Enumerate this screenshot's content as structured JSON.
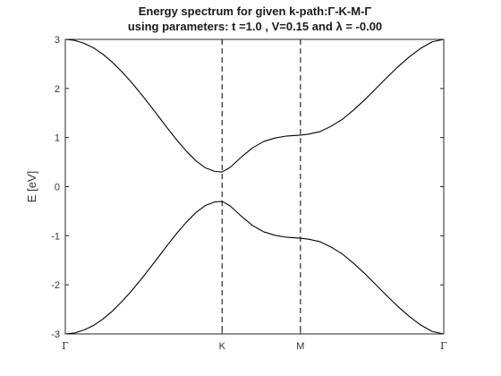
{
  "chart_data": {
    "type": "line",
    "title_line1": "Energy spectrum for given k-path:Γ-K-M-Γ",
    "title_line2": "using parameters: t =1.0 , V=0.15 and  λ = -0.00",
    "xlabel": "",
    "ylabel": "E [eV]",
    "ylim": [
      -3,
      3
    ],
    "yticks": [
      "-3",
      "-2",
      "-1",
      "0",
      "1",
      "2",
      "3"
    ],
    "yticks_values": [
      -3,
      -2,
      -1,
      0,
      1,
      2,
      3
    ],
    "xticks": [
      {
        "label": "Γ",
        "k": 0
      },
      {
        "label": "K",
        "k": 4.18879
      },
      {
        "label": "M",
        "k": 6.28319
      },
      {
        "label": "Γ",
        "k": 10.1109
      }
    ],
    "xlim": [
      0,
      10.1109
    ],
    "vertical_dashed_at": [
      4.18879,
      6.28319
    ],
    "grid": false,
    "legend": "none",
    "line_color": "#000000",
    "series": [
      {
        "points": [
          [
            0,
            3.0
          ],
          [
            0.25,
            2.98
          ],
          [
            0.5,
            2.92
          ],
          [
            0.75,
            2.83
          ],
          [
            1.0,
            2.7
          ],
          [
            1.25,
            2.54
          ],
          [
            1.5,
            2.35
          ],
          [
            1.75,
            2.14
          ],
          [
            2.0,
            1.91
          ],
          [
            2.25,
            1.67
          ],
          [
            2.5,
            1.42
          ],
          [
            2.75,
            1.17
          ],
          [
            3.0,
            0.93
          ],
          [
            3.25,
            0.71
          ],
          [
            3.5,
            0.52
          ],
          [
            3.75,
            0.38
          ],
          [
            4.0,
            0.31
          ],
          [
            4.18879,
            0.3
          ],
          [
            4.4,
            0.39
          ],
          [
            4.7,
            0.6
          ],
          [
            5.0,
            0.79
          ],
          [
            5.3,
            0.92
          ],
          [
            5.6,
            0.99
          ],
          [
            5.9,
            1.03
          ],
          [
            6.1,
            1.04
          ],
          [
            6.28319,
            1.05
          ],
          [
            6.5,
            1.07
          ],
          [
            6.8,
            1.12
          ],
          [
            7.1,
            1.23
          ],
          [
            7.4,
            1.37
          ],
          [
            7.7,
            1.56
          ],
          [
            8.0,
            1.77
          ],
          [
            8.3,
            2.0
          ],
          [
            8.6,
            2.23
          ],
          [
            8.9,
            2.45
          ],
          [
            9.2,
            2.65
          ],
          [
            9.5,
            2.82
          ],
          [
            9.8,
            2.95
          ],
          [
            10.1109,
            3.0
          ]
        ]
      },
      {
        "points": [
          [
            0,
            -3.0
          ],
          [
            0.25,
            -2.98
          ],
          [
            0.5,
            -2.92
          ],
          [
            0.75,
            -2.83
          ],
          [
            1.0,
            -2.7
          ],
          [
            1.25,
            -2.54
          ],
          [
            1.5,
            -2.35
          ],
          [
            1.75,
            -2.14
          ],
          [
            2.0,
            -1.91
          ],
          [
            2.25,
            -1.67
          ],
          [
            2.5,
            -1.42
          ],
          [
            2.75,
            -1.17
          ],
          [
            3.0,
            -0.93
          ],
          [
            3.25,
            -0.71
          ],
          [
            3.5,
            -0.52
          ],
          [
            3.75,
            -0.38
          ],
          [
            4.0,
            -0.31
          ],
          [
            4.18879,
            -0.3
          ],
          [
            4.4,
            -0.39
          ],
          [
            4.7,
            -0.6
          ],
          [
            5.0,
            -0.79
          ],
          [
            5.3,
            -0.92
          ],
          [
            5.6,
            -0.99
          ],
          [
            5.9,
            -1.03
          ],
          [
            6.1,
            -1.04
          ],
          [
            6.28319,
            -1.05
          ],
          [
            6.5,
            -1.07
          ],
          [
            6.8,
            -1.12
          ],
          [
            7.1,
            -1.23
          ],
          [
            7.4,
            -1.37
          ],
          [
            7.7,
            -1.56
          ],
          [
            8.0,
            -1.77
          ],
          [
            8.3,
            -2.0
          ],
          [
            8.6,
            -2.23
          ],
          [
            8.9,
            -2.45
          ],
          [
            9.2,
            -2.65
          ],
          [
            9.5,
            -2.82
          ],
          [
            9.8,
            -2.95
          ],
          [
            10.1109,
            -3.0
          ]
        ]
      }
    ]
  }
}
